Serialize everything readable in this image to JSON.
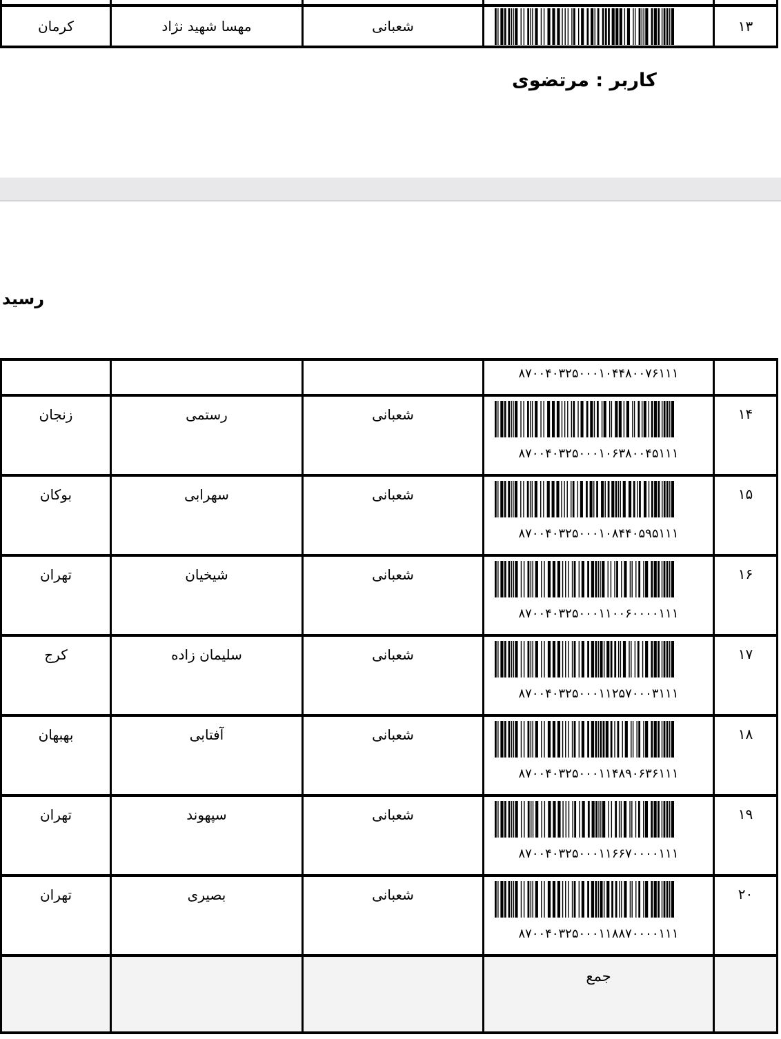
{
  "page1": {
    "last_row": {
      "index": "۱۳",
      "city": "کرمان",
      "recipient": "مهسا شهید نژاد",
      "sender": "شعبانی",
      "code": "۸۷۰۰۴۰۳۲۵۰۰۰۱۰۴۴۸۰۰۷۶۱۱۱"
    },
    "footer_user": "کاربر : مرتضوی"
  },
  "page2": {
    "title": "رسید",
    "carryover_code": "۸۷۰۰۴۰۳۲۵۰۰۰۱۰۴۴۸۰۰۷۶۱۱۱",
    "rows": [
      {
        "index": "۱۴",
        "city": "زنجان",
        "recipient": "رستمی",
        "sender": "شعبانی",
        "code": "۸۷۰۰۴۰۳۲۵۰۰۰۱۰۶۳۸۰۰۴۵۱۱۱"
      },
      {
        "index": "۱۵",
        "city": "بوکان",
        "recipient": "سهرابی",
        "sender": "شعبانی",
        "code": "۸۷۰۰۴۰۳۲۵۰۰۰۱۰۸۴۴۰۵۹۵۱۱۱"
      },
      {
        "index": "۱۶",
        "city": "تهران",
        "recipient": "شیخیان",
        "sender": "شعبانی",
        "code": "۸۷۰۰۴۰۳۲۵۰۰۰۱۱۰۰۶۰۰۰۰۱۱۱"
      },
      {
        "index": "۱۷",
        "city": "کرج",
        "recipient": "سلیمان زاده",
        "sender": "شعبانی",
        "code": "۸۷۰۰۴۰۳۲۵۰۰۰۱۱۲۵۷۰۰۰۳۱۱۱"
      },
      {
        "index": "۱۸",
        "city": "بهبهان",
        "recipient": "آفتابی",
        "sender": "شعبانی",
        "code": "۸۷۰۰۴۰۳۲۵۰۰۰۱۱۴۸۹۰۶۳۶۱۱۱"
      },
      {
        "index": "۱۹",
        "city": "تهران",
        "recipient": "سپهوند",
        "sender": "شعبانی",
        "code": "۸۷۰۰۴۰۳۲۵۰۰۰۱۱۶۶۷۰۰۰۰۱۱۱"
      },
      {
        "index": "۲۰",
        "city": "تهران",
        "recipient": "بصیری",
        "sender": "شعبانی",
        "code": "۸۷۰۰۴۰۳۲۵۰۰۰۱۱۸۸۷۰۰۰۰۱۱۱"
      }
    ],
    "total_label": "جمع"
  },
  "colors": {
    "table_border": "#000000",
    "separator_bg": "#e8e8ea",
    "total_row_bg": "#f3f3f4"
  }
}
